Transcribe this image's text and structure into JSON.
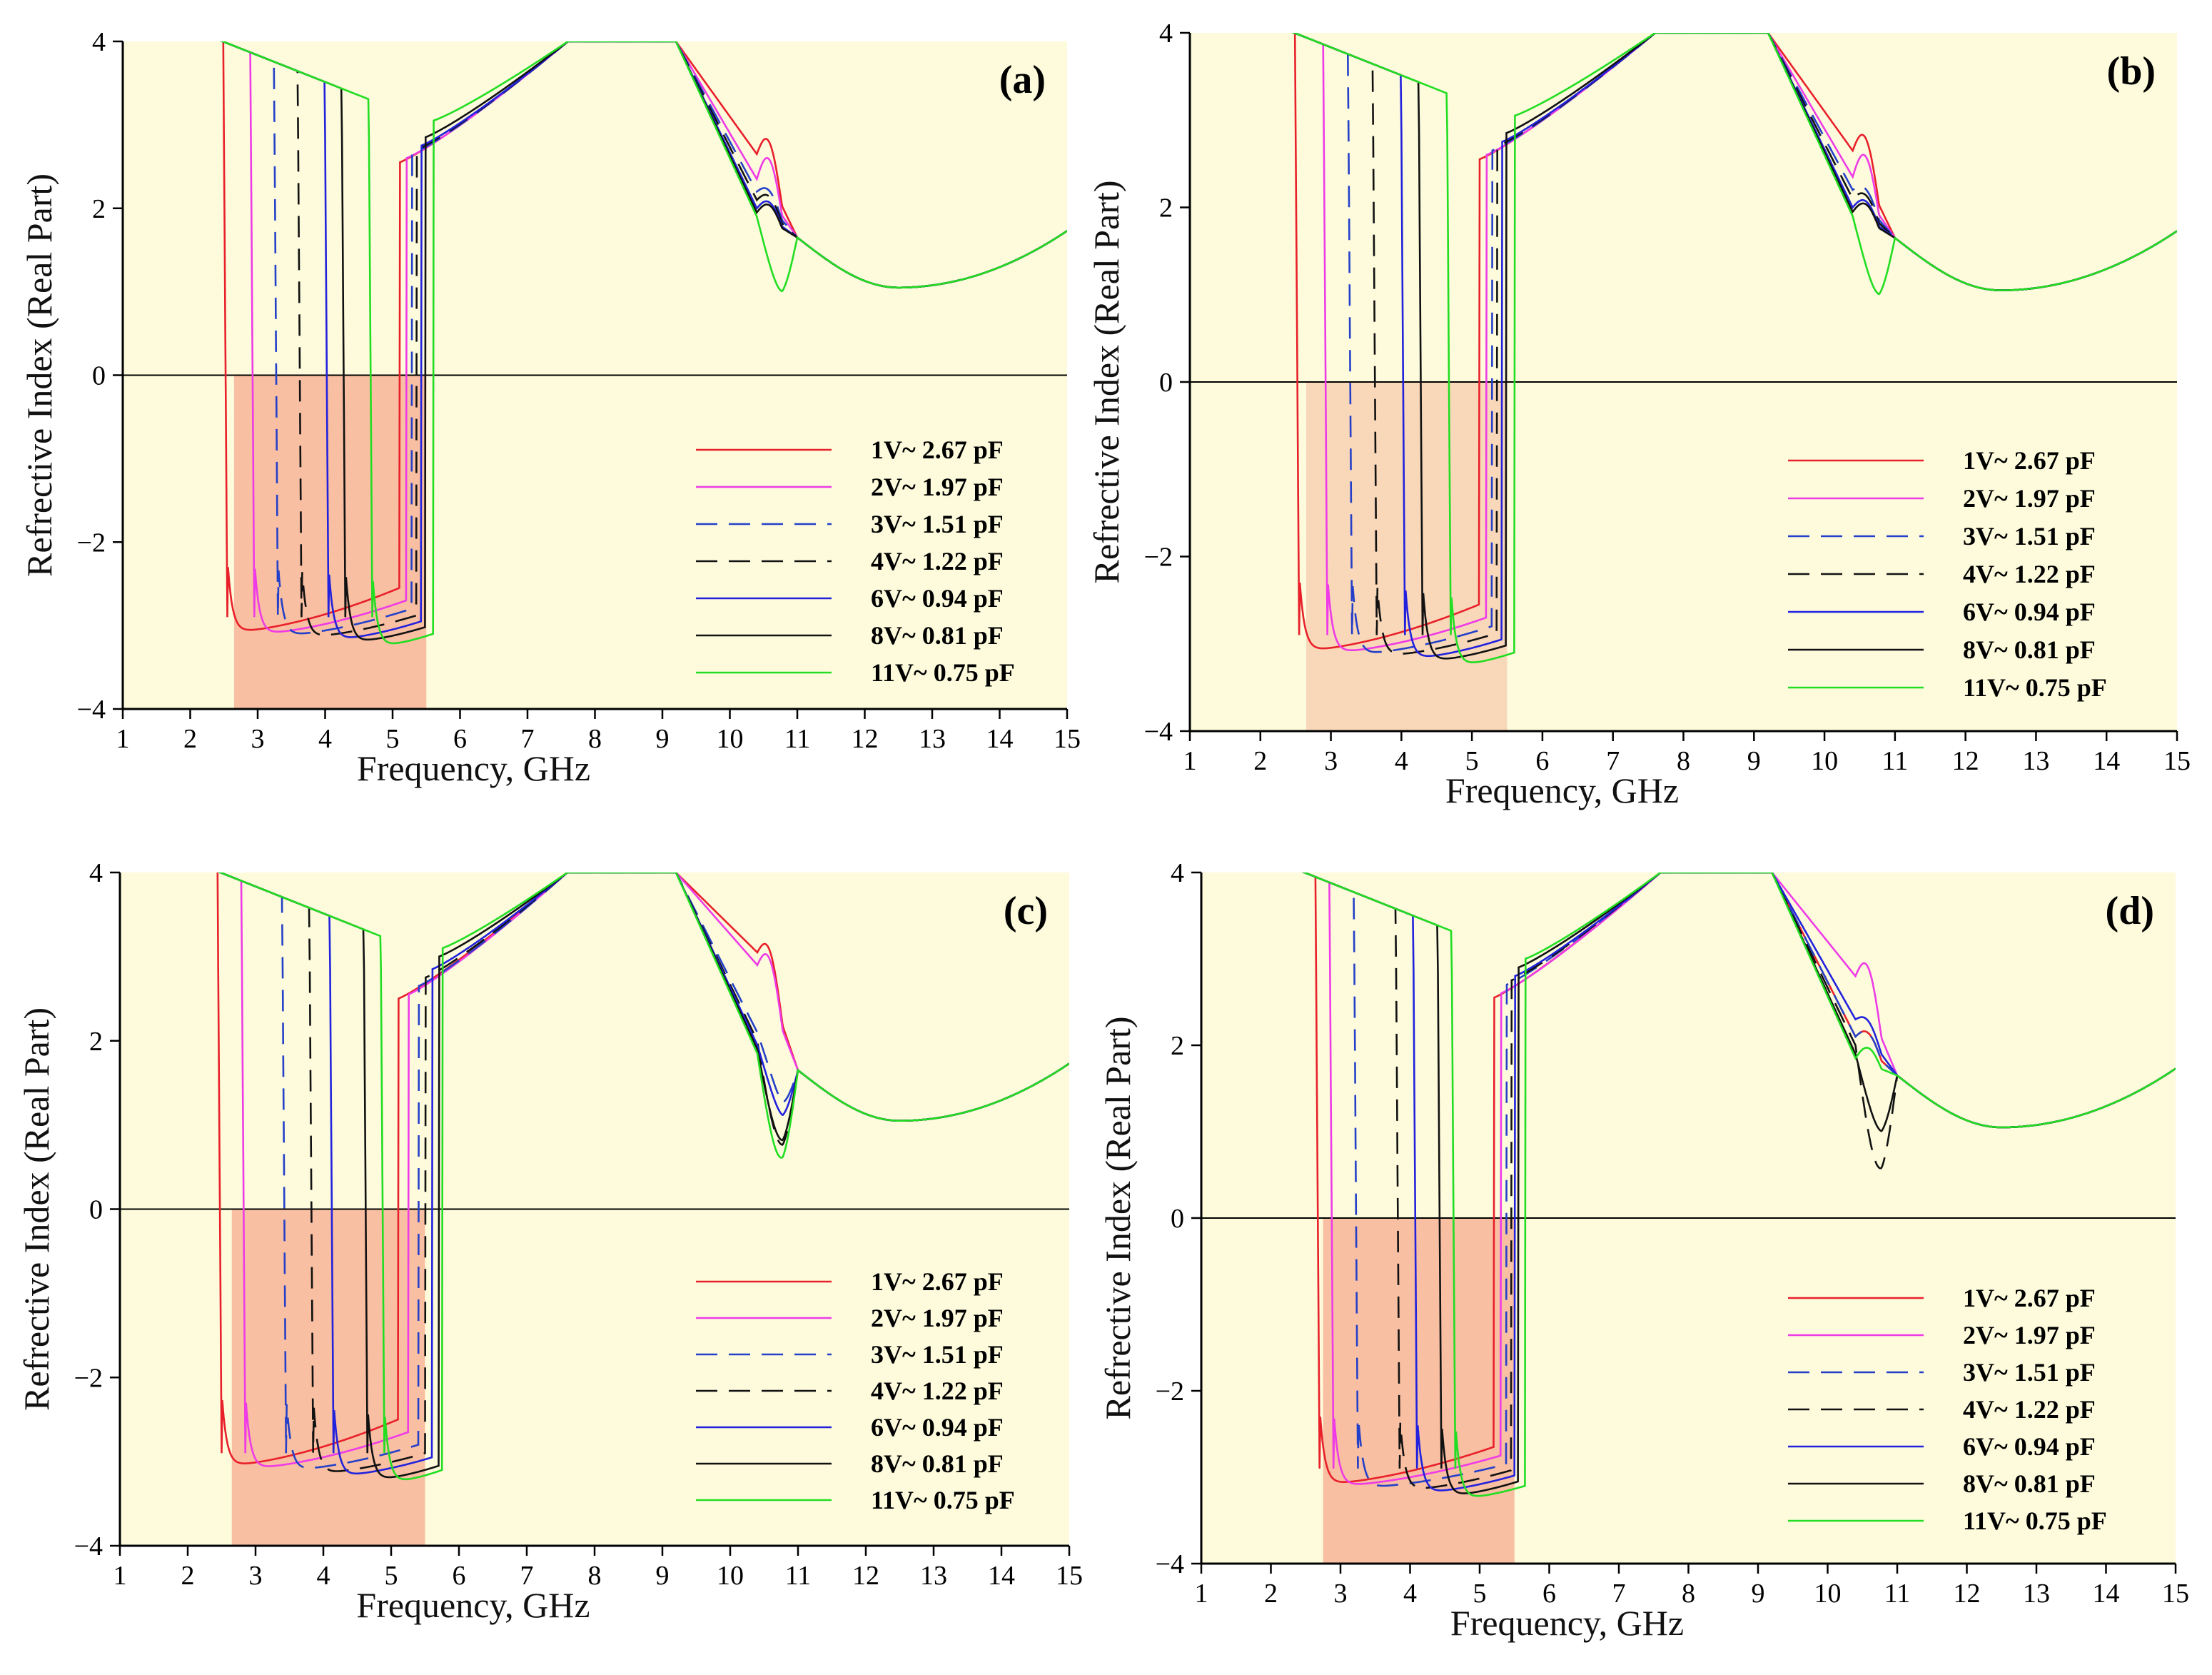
{
  "chart_data": [
    {
      "type": "line",
      "panel_label": "(a)",
      "xlabel": "Frequency, GHz",
      "ylabel": "Refrective Index (Real Part)",
      "xlim": [
        1,
        15
      ],
      "ylim": [
        -4,
        4
      ],
      "x_ticks": [
        "1",
        "2",
        "3",
        "4",
        "5",
        "6",
        "7",
        "8",
        "9",
        "10",
        "11",
        "12",
        "13",
        "14",
        "15"
      ],
      "y_ticks": [
        "−4",
        "−2",
        "0",
        "2",
        "4"
      ],
      "grid": false,
      "legend_position": "lower-right",
      "shaded_band": {
        "x": [
          2.65,
          5.5
        ],
        "y": [
          -4,
          0
        ]
      },
      "series": [
        {
          "name": "1V~ 2.67 pF",
          "color": "#e8202a",
          "dash": "solid",
          "f1": 2.55,
          "f2": 5.1,
          "low1": -3.08,
          "low2": -2.55,
          "jump": 2.55,
          "peak": 3.05,
          "res_drop": 0
        },
        {
          "name": "2V~ 1.97 pF",
          "color": "#ee3be6",
          "dash": "solid",
          "f1": 2.95,
          "f2": 5.2,
          "low1": -3.1,
          "low2": -2.7,
          "jump": 2.6,
          "peak": 2.75,
          "res_drop": 0
        },
        {
          "name": "3V~ 1.51 pF",
          "color": "#2540c8",
          "dash": "dash",
          "f1": 3.3,
          "f2": 5.28,
          "low1": -3.12,
          "low2": -2.8,
          "jump": 2.65,
          "peak": 2.6,
          "res_drop": 0
        },
        {
          "name": "4V~ 1.22 pF",
          "color": "#111111",
          "dash": "dash",
          "f1": 3.65,
          "f2": 5.35,
          "low1": -3.14,
          "low2": -2.88,
          "jump": 2.7,
          "peak": 2.5,
          "res_drop": 0
        },
        {
          "name": "6V~ 0.94 pF",
          "color": "#2222dd",
          "dash": "solid",
          "f1": 4.05,
          "f2": 5.42,
          "low1": -3.17,
          "low2": -2.95,
          "jump": 2.75,
          "peak": 2.4,
          "res_drop": 0
        },
        {
          "name": "8V~ 0.81 pF",
          "color": "#111111",
          "dash": "solid",
          "f1": 4.3,
          "f2": 5.48,
          "low1": -3.2,
          "low2": -3.02,
          "jump": 2.85,
          "peak": 2.35,
          "res_drop": 0
        },
        {
          "name": "11V~ 0.75 pF",
          "color": "#22dd22",
          "dash": "solid",
          "f1": 4.7,
          "f2": 5.6,
          "low1": -3.25,
          "low2": -3.1,
          "jump": 3.05,
          "peak": 2.3,
          "res_drop": 0.8
        }
      ]
    },
    {
      "type": "line",
      "panel_label": "(b)",
      "xlabel": "Frequency, GHz",
      "ylabel": "Refrective Index (Real Part)",
      "xlim": [
        1,
        15
      ],
      "ylim": [
        -4,
        4
      ],
      "x_ticks": [
        "1",
        "2",
        "3",
        "4",
        "5",
        "6",
        "7",
        "8",
        "9",
        "10",
        "11",
        "12",
        "13",
        "14",
        "15"
      ],
      "y_ticks": [
        "−4",
        "−2",
        "0",
        "2",
        "4"
      ],
      "grid": false,
      "legend_position": "lower-right",
      "shaded_band": {
        "x": [
          2.65,
          5.5
        ],
        "y": [
          -4,
          0
        ]
      },
      "series": [
        {
          "name": "1V~ 2.67 pF",
          "color": "#e8202a",
          "dash": "solid",
          "f1": 2.55,
          "f2": 5.1,
          "low1": -3.08,
          "low2": -2.55,
          "jump": 2.55,
          "peak": 3.05,
          "res_drop": 0
        },
        {
          "name": "2V~ 1.97 pF",
          "color": "#ee3be6",
          "dash": "solid",
          "f1": 2.95,
          "f2": 5.2,
          "low1": -3.1,
          "low2": -2.7,
          "jump": 2.6,
          "peak": 2.75,
          "res_drop": 0
        },
        {
          "name": "3V~ 1.51 pF",
          "color": "#2540c8",
          "dash": "dash",
          "f1": 3.3,
          "f2": 5.28,
          "low1": -3.12,
          "low2": -2.8,
          "jump": 2.65,
          "peak": 2.6,
          "res_drop": 0
        },
        {
          "name": "4V~ 1.22 pF",
          "color": "#111111",
          "dash": "dash",
          "f1": 3.65,
          "f2": 5.35,
          "low1": -3.14,
          "low2": -2.88,
          "jump": 2.7,
          "peak": 2.5,
          "res_drop": 0
        },
        {
          "name": "6V~ 0.94 pF",
          "color": "#2222dd",
          "dash": "solid",
          "f1": 4.05,
          "f2": 5.42,
          "low1": -3.17,
          "low2": -2.95,
          "jump": 2.75,
          "peak": 2.4,
          "res_drop": 0
        },
        {
          "name": "8V~ 0.81 pF",
          "color": "#111111",
          "dash": "solid",
          "f1": 4.3,
          "f2": 5.48,
          "low1": -3.2,
          "low2": -3.02,
          "jump": 2.85,
          "peak": 2.35,
          "res_drop": 0
        },
        {
          "name": "11V~ 0.75 pF",
          "color": "#22dd22",
          "dash": "solid",
          "f1": 4.7,
          "f2": 5.6,
          "low1": -3.25,
          "low2": -3.1,
          "jump": 3.05,
          "peak": 2.3,
          "res_drop": 0.8
        }
      ]
    },
    {
      "type": "line",
      "panel_label": "(c)",
      "xlabel": "Frequency, GHz",
      "ylabel": "Refrective Index (Real Part)",
      "xlim": [
        1,
        15
      ],
      "ylim": [
        -4,
        4
      ],
      "x_ticks": [
        "1",
        "2",
        "3",
        "4",
        "5",
        "6",
        "7",
        "8",
        "9",
        "10",
        "11",
        "12",
        "13",
        "14",
        "15"
      ],
      "y_ticks": [
        "−4",
        "−2",
        "0",
        "2",
        "4"
      ],
      "grid": false,
      "legend_position": "lower-right",
      "shaded_band": {
        "x": [
          2.65,
          5.5
        ],
        "y": [
          -4,
          0
        ]
      },
      "series": [
        {
          "name": "1V~ 2.67 pF",
          "color": "#e8202a",
          "dash": "solid",
          "f1": 2.5,
          "f2": 5.1,
          "low1": -3.05,
          "low2": -2.5,
          "jump": 2.5,
          "peak": 3.45,
          "res_drop": 0
        },
        {
          "name": "2V~ 1.97 pF",
          "color": "#ee3be6",
          "dash": "solid",
          "f1": 2.85,
          "f2": 5.25,
          "low1": -3.08,
          "low2": -2.65,
          "jump": 2.55,
          "peak": 3.3,
          "res_drop": 0
        },
        {
          "name": "3V~ 1.51 pF",
          "color": "#2540c8",
          "dash": "dash",
          "f1": 3.45,
          "f2": 5.4,
          "low1": -3.1,
          "low2": -2.8,
          "jump": 2.65,
          "peak": 2.5,
          "res_drop": 0.6
        },
        {
          "name": "4V~ 1.22 pF",
          "color": "#111111",
          "dash": "dash",
          "f1": 3.85,
          "f2": 5.5,
          "low1": -3.14,
          "low2": -2.9,
          "jump": 2.75,
          "peak": 2.4,
          "res_drop": 1.1
        },
        {
          "name": "6V~ 0.94 pF",
          "color": "#2222dd",
          "dash": "solid",
          "f1": 4.15,
          "f2": 5.6,
          "low1": -3.17,
          "low2": -2.95,
          "jump": 2.85,
          "peak": 2.35,
          "res_drop": 0.7
        },
        {
          "name": "8V~ 0.81 pF",
          "color": "#111111",
          "dash": "solid",
          "f1": 4.65,
          "f2": 5.7,
          "low1": -3.22,
          "low2": -3.05,
          "jump": 3.0,
          "peak": 2.3,
          "res_drop": 1.0
        },
        {
          "name": "11V~ 0.75 pF",
          "color": "#22dd22",
          "dash": "solid",
          "f1": 4.9,
          "f2": 5.75,
          "low1": -3.25,
          "low2": -3.1,
          "jump": 3.1,
          "peak": 2.25,
          "res_drop": 1.2
        }
      ]
    },
    {
      "type": "line",
      "panel_label": "(d)",
      "xlabel": "Frequency, GHz",
      "ylabel": "Refrective Index (Real Part)",
      "xlim": [
        1,
        15
      ],
      "ylim": [
        -4,
        4
      ],
      "x_ticks": [
        "1",
        "2",
        "3",
        "4",
        "5",
        "6",
        "7",
        "8",
        "9",
        "10",
        "11",
        "12",
        "13",
        "14",
        "15"
      ],
      "y_ticks": [
        "−4",
        "−2",
        "0",
        "2",
        "4"
      ],
      "grid": false,
      "legend_position": "lower-right",
      "shaded_band": {
        "x": [
          2.75,
          5.5
        ],
        "y": [
          -4,
          0
        ]
      },
      "series": [
        {
          "name": "1V~ 2.67 pF",
          "color": "#e8202a",
          "dash": "solid",
          "f1": 2.7,
          "f2": 5.2,
          "low1": -3.08,
          "low2": -2.65,
          "jump": 2.55,
          "peak": 2.5,
          "res_drop": 0
        },
        {
          "name": "2V~ 1.97 pF",
          "color": "#ee3be6",
          "dash": "solid",
          "f1": 2.9,
          "f2": 5.3,
          "low1": -3.1,
          "low2": -2.75,
          "jump": 2.6,
          "peak": 3.2,
          "res_drop": 0
        },
        {
          "name": "3V~ 1.51 pF",
          "color": "#2540c8",
          "dash": "dash",
          "f1": 3.25,
          "f2": 5.38,
          "low1": -3.12,
          "low2": -2.85,
          "jump": 2.7,
          "peak": 2.5,
          "res_drop": 0
        },
        {
          "name": "4V~ 1.22 pF",
          "color": "#111111",
          "dash": "dash",
          "f1": 3.85,
          "f2": 5.45,
          "low1": -3.15,
          "low2": -2.92,
          "jump": 2.75,
          "peak": 2.4,
          "res_drop": 1.3
        },
        {
          "name": "6V~ 0.94 pF",
          "color": "#2222dd",
          "dash": "solid",
          "f1": 4.1,
          "f2": 5.5,
          "low1": -3.18,
          "low2": -2.98,
          "jump": 2.8,
          "peak": 2.7,
          "res_drop": 0
        },
        {
          "name": "8V~ 0.81 pF",
          "color": "#111111",
          "dash": "solid",
          "f1": 4.45,
          "f2": 5.55,
          "low1": -3.22,
          "low2": -3.05,
          "jump": 2.9,
          "peak": 2.3,
          "res_drop": 0.8
        },
        {
          "name": "11V~ 0.75 pF",
          "color": "#22dd22",
          "dash": "solid",
          "f1": 4.65,
          "f2": 5.65,
          "low1": -3.25,
          "low2": -3.1,
          "jump": 3.0,
          "peak": 2.25,
          "res_drop": 0
        }
      ]
    }
  ],
  "colors": {
    "plot_background": "#fdfbdc",
    "band_fill_warm": "#f9bfa2",
    "band_fill_light": "#f9d8ba",
    "axis": "#000000"
  }
}
